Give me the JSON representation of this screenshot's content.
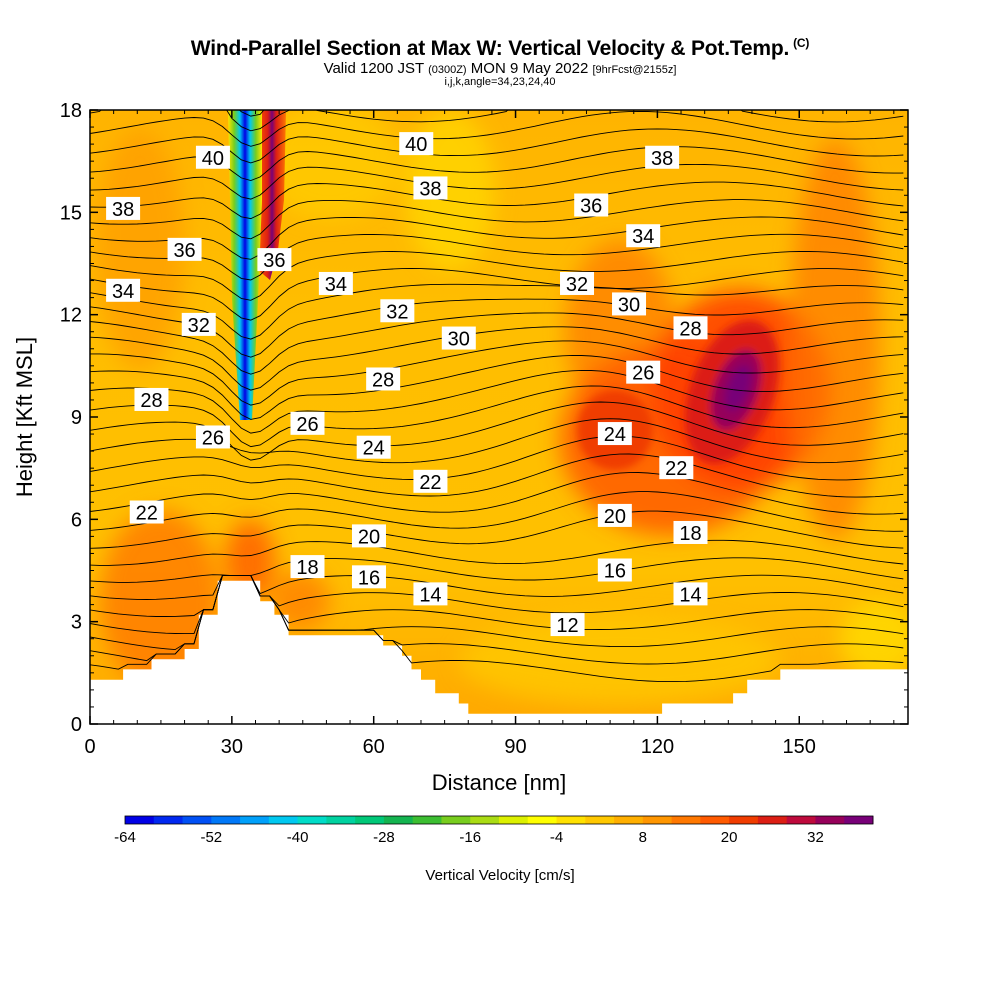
{
  "header": {
    "title": "Wind-Parallel Section at Max W: Vertical Velocity & Pot.Temp.",
    "copyright": "(C)",
    "valid_a": "Valid 1200 JST",
    "valid_b": "(0300Z)",
    "valid_c": "MON 9 May 2022",
    "valid_d": "[9hrFcst@2155z]",
    "subtitle2": "i,j,k,angle=34,23,24,40"
  },
  "chart_data": {
    "type": "heatmap",
    "xlabel": "Distance [nm]",
    "ylabel": "Height [Kft MSL]",
    "xlim": [
      0,
      173
    ],
    "ylim": [
      0,
      18
    ],
    "x_ticks": [
      "0",
      "30",
      "60",
      "90",
      "120",
      "150"
    ],
    "y_ticks": [
      "0",
      "3",
      "6",
      "9",
      "12",
      "15",
      "18"
    ],
    "colorbar": {
      "label": "Vertical Velocity [cm/s]",
      "tick_labels": [
        "-64",
        "-52",
        "-40",
        "-28",
        "-16",
        "-4",
        "8",
        "20",
        "32"
      ],
      "levels": [
        -64,
        -60,
        -56,
        -52,
        -48,
        -44,
        -40,
        -36,
        -32,
        -28,
        -24,
        -20,
        -16,
        -12,
        -8,
        -4,
        0,
        4,
        8,
        12,
        16,
        20,
        24,
        28,
        32,
        36
      ],
      "colors": [
        "#0000e6",
        "#0028f0",
        "#0050f5",
        "#0078f8",
        "#00a0fa",
        "#00c8f0",
        "#00dcc8",
        "#00d2a0",
        "#00c878",
        "#14b450",
        "#3cbe32",
        "#78cd1e",
        "#aadc14",
        "#dcf000",
        "#ffff00",
        "#ffe100",
        "#ffc800",
        "#ffaf00",
        "#ff9600",
        "#ff7800",
        "#ff5a00",
        "#f03c00",
        "#dc1e14",
        "#be0a3c",
        "#96005a",
        "#780078"
      ]
    },
    "terrain_kft": [
      [
        0,
        1.3
      ],
      [
        7,
        1.3
      ],
      [
        7,
        1.6
      ],
      [
        13,
        1.6
      ],
      [
        13,
        1.9
      ],
      [
        20,
        1.9
      ],
      [
        20,
        2.2
      ],
      [
        23,
        2.2
      ],
      [
        23,
        3.2
      ],
      [
        27,
        3.2
      ],
      [
        27,
        4.2
      ],
      [
        36,
        4.2
      ],
      [
        36,
        3.6
      ],
      [
        39,
        3.6
      ],
      [
        39,
        3.2
      ],
      [
        42,
        3.2
      ],
      [
        42,
        2.6
      ],
      [
        62,
        2.6
      ],
      [
        62,
        2.3
      ],
      [
        66,
        2.3
      ],
      [
        66,
        2.0
      ],
      [
        68,
        2.0
      ],
      [
        68,
        1.6
      ],
      [
        70,
        1.6
      ],
      [
        70,
        1.3
      ],
      [
        73,
        1.3
      ],
      [
        73,
        0.9
      ],
      [
        78,
        0.9
      ],
      [
        78,
        0.6
      ],
      [
        80,
        0.6
      ],
      [
        80,
        0.3
      ],
      [
        121,
        0.3
      ],
      [
        121,
        0.6
      ],
      [
        136,
        0.6
      ],
      [
        136,
        0.9
      ],
      [
        139,
        0.9
      ],
      [
        139,
        1.3
      ],
      [
        146,
        1.3
      ],
      [
        146,
        1.6
      ],
      [
        173,
        1.6
      ]
    ],
    "pot_temp_contours": [
      {
        "label": "40",
        "x": 26,
        "y": 16.6
      },
      {
        "label": "40",
        "x": 69,
        "y": 17.0
      },
      {
        "label": "38",
        "x": 121,
        "y": 16.6
      },
      {
        "label": "38",
        "x": 7,
        "y": 15.1
      },
      {
        "label": "38",
        "x": 72,
        "y": 15.7
      },
      {
        "label": "36",
        "x": 106,
        "y": 15.2
      },
      {
        "label": "36",
        "x": 20,
        "y": 13.9
      },
      {
        "label": "36",
        "x": 39,
        "y": 13.6
      },
      {
        "label": "34",
        "x": 117,
        "y": 14.3
      },
      {
        "label": "34",
        "x": 7,
        "y": 12.7
      },
      {
        "label": "34",
        "x": 52,
        "y": 12.9
      },
      {
        "label": "32",
        "x": 103,
        "y": 12.9
      },
      {
        "label": "32",
        "x": 23,
        "y": 11.7
      },
      {
        "label": "32",
        "x": 65,
        "y": 12.1
      },
      {
        "label": "30",
        "x": 114,
        "y": 12.3
      },
      {
        "label": "30",
        "x": 78,
        "y": 11.3
      },
      {
        "label": "28",
        "x": 127,
        "y": 11.6
      },
      {
        "label": "28",
        "x": 13,
        "y": 9.5
      },
      {
        "label": "28",
        "x": 62,
        "y": 10.1
      },
      {
        "label": "26",
        "x": 117,
        "y": 10.3
      },
      {
        "label": "26",
        "x": 26,
        "y": 8.4
      },
      {
        "label": "26",
        "x": 46,
        "y": 8.8
      },
      {
        "label": "24",
        "x": 111,
        "y": 8.5
      },
      {
        "label": "24",
        "x": 60,
        "y": 8.1
      },
      {
        "label": "22",
        "x": 124,
        "y": 7.5
      },
      {
        "label": "22",
        "x": 12,
        "y": 6.2
      },
      {
        "label": "22",
        "x": 72,
        "y": 7.1
      },
      {
        "label": "20",
        "x": 111,
        "y": 6.1
      },
      {
        "label": "20",
        "x": 59,
        "y": 5.5
      },
      {
        "label": "18",
        "x": 127,
        "y": 5.6
      },
      {
        "label": "18",
        "x": 46,
        "y": 4.6
      },
      {
        "label": "16",
        "x": 111,
        "y": 4.5
      },
      {
        "label": "16",
        "x": 59,
        "y": 4.3
      },
      {
        "label": "14",
        "x": 127,
        "y": 3.8
      },
      {
        "label": "14",
        "x": 72,
        "y": 3.8
      },
      {
        "label": "12",
        "x": 101,
        "y": 2.9
      }
    ],
    "vertical_velocity_features": [
      {
        "kind": "downdraft",
        "x": 32.5,
        "y_from": 9.0,
        "y_to": 18,
        "min_cm_s": -64
      },
      {
        "kind": "updraft",
        "x": 38,
        "y_from": 13,
        "y_to": 18,
        "max_cm_s": 36
      },
      {
        "kind": "updraft",
        "x": 134,
        "y": 9.5,
        "max_cm_s": 32
      },
      {
        "kind": "updraft",
        "x": 110,
        "y": 8.8,
        "max_cm_s": 20
      }
    ]
  }
}
